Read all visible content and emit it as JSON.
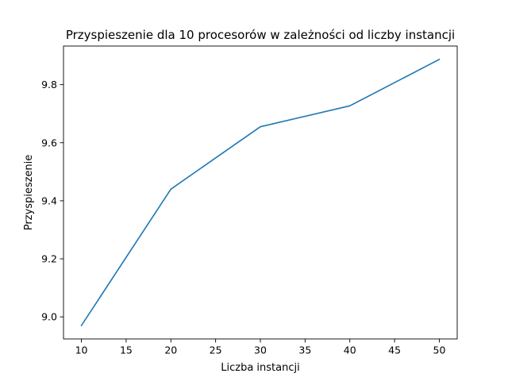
{
  "chart_data": {
    "type": "line",
    "title": "Przyspieszenie dla 10 procesorów w zależności od liczby instancji",
    "xlabel": "Liczba instancji",
    "ylabel": "Przyspieszenie",
    "x": [
      10,
      20,
      30,
      40,
      50
    ],
    "series": [
      {
        "values": [
          8.97,
          9.44,
          9.655,
          9.727,
          9.887
        ],
        "color": "#1f77b4"
      }
    ],
    "xlim": [
      8,
      52
    ],
    "ylim": [
      8.924,
      9.933
    ],
    "xticks": [
      10,
      15,
      20,
      25,
      30,
      35,
      40,
      45,
      50
    ],
    "xtick_labels": [
      "10",
      "15",
      "20",
      "25",
      "30",
      "35",
      "40",
      "45",
      "50"
    ],
    "yticks": [
      9.0,
      9.2,
      9.4,
      9.6,
      9.8
    ],
    "ytick_labels": [
      "9.0",
      "9.2",
      "9.4",
      "9.6",
      "9.8"
    ],
    "grid": false,
    "legend": false
  }
}
